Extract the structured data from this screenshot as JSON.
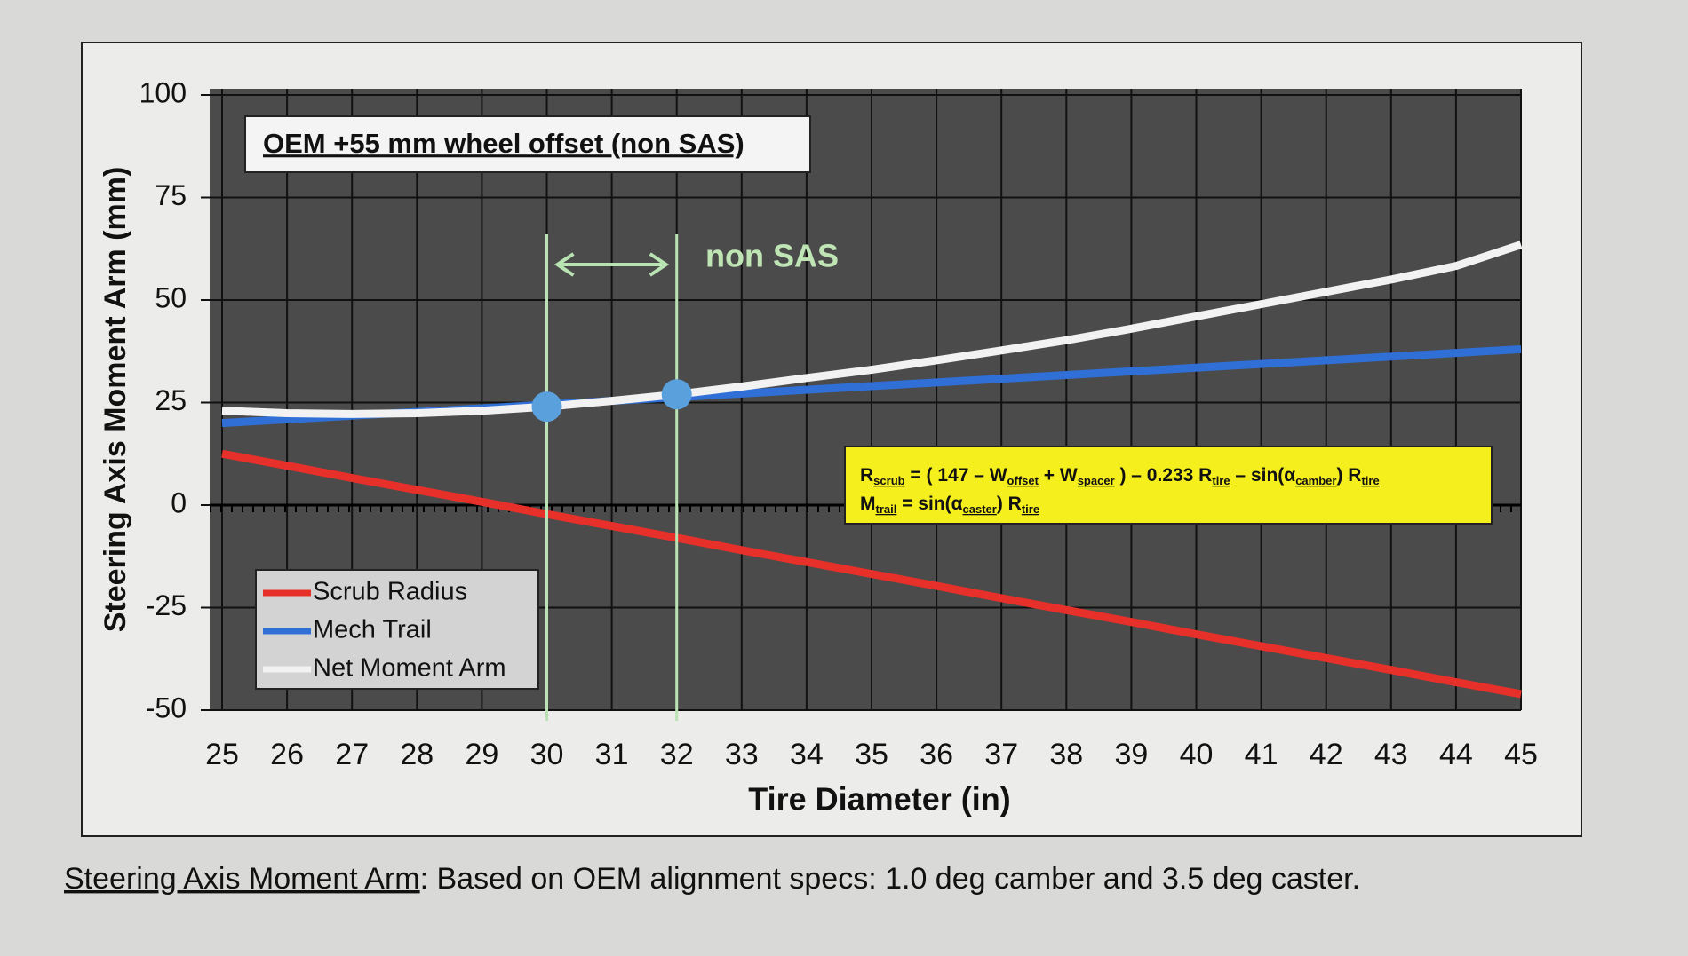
{
  "chart_data": {
    "type": "line",
    "x_label": "Tire Diameter (in)",
    "y_label": "Steering Axis Moment Arm (mm)",
    "x": [
      25,
      26,
      27,
      28,
      29,
      30,
      31,
      32,
      33,
      34,
      35,
      36,
      37,
      38,
      39,
      40,
      41,
      42,
      43,
      44,
      45
    ],
    "series": [
      {
        "name": "Scrub Radius",
        "color": "#e8302a",
        "values": [
          12.5,
          9.6,
          6.6,
          3.7,
          0.8,
          -2.2,
          -5.1,
          -8.0,
          -11.0,
          -13.9,
          -16.8,
          -19.7,
          -22.7,
          -25.6,
          -28.5,
          -31.5,
          -34.4,
          -37.3,
          -40.2,
          -43.2,
          -46.1
        ]
      },
      {
        "name": "Mech Trail",
        "color": "#2f6fd6",
        "values": [
          20,
          20.9,
          21.8,
          22.7,
          23.6,
          24.5,
          25.4,
          26.3,
          27.2,
          28.1,
          29,
          29.9,
          30.8,
          31.7,
          32.6,
          33.5,
          34.4,
          35.3,
          36.2,
          37.1,
          38
        ]
      },
      {
        "name": "Net Moment Arm",
        "color": "#f2f2f2",
        "values": [
          23,
          22.4,
          22.2,
          22.4,
          23,
          24,
          25.4,
          27,
          28.9,
          31,
          33,
          35.3,
          37.7,
          40.2,
          43,
          46,
          49,
          52,
          55,
          58.3,
          63.5
        ]
      }
    ],
    "xlim": [
      25,
      45
    ],
    "xticks": [
      25,
      26,
      27,
      28,
      29,
      30,
      31,
      32,
      33,
      34,
      35,
      36,
      37,
      38,
      39,
      40,
      41,
      42,
      43,
      44,
      45
    ],
    "ylim": [
      -50,
      100
    ],
    "yticks": [
      -50,
      -25,
      0,
      25,
      50,
      75,
      100
    ],
    "grid": true,
    "legend": "lower left",
    "vlines": [
      30,
      32
    ],
    "markers": {
      "x": [
        30,
        32
      ],
      "y": [
        24,
        27
      ],
      "color": "#5aa0dc"
    },
    "annotations": [
      "OEM +55 mm wheel offset (non SAS)",
      "non SAS"
    ],
    "formula": [
      [
        {
          "text": "R",
          "sub": "scrub"
        },
        {
          "text": " = ( 147 – W",
          "sub": "offset"
        },
        {
          "text": " + W",
          "sub": "spacer"
        },
        {
          "text": " ) – 0.233 R",
          "sub": "tire"
        },
        {
          "text": " – sin(α",
          "sub": "camber"
        },
        {
          "text": ") R",
          "sub": "tire"
        }
      ],
      [
        {
          "text": "M",
          "sub": "trail"
        },
        {
          "text": " = sin(α",
          "sub": "caster"
        },
        {
          "text": ") R",
          "sub": "tire"
        }
      ]
    ],
    "caption": [
      "Steering Axis Moment Arm",
      ": Based on OEM alignment specs: 1.0 deg camber and 3.5 deg caster."
    ]
  }
}
